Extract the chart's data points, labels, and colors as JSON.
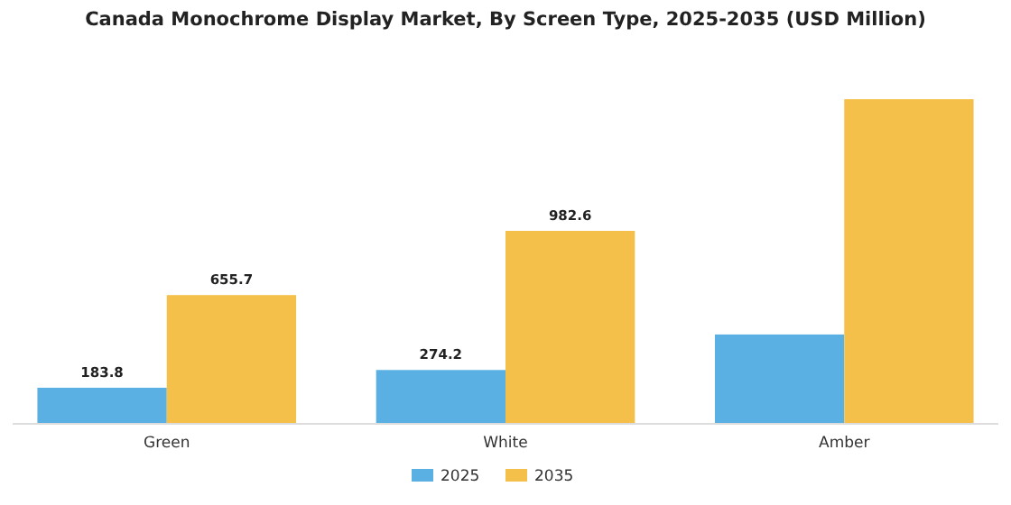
{
  "chart_data": {
    "type": "bar",
    "title": "Canada Monochrome Display Market, By Screen Type, 2025-2035 (USD Million)",
    "categories": [
      "Green",
      "White",
      "Amber"
    ],
    "series": [
      {
        "name": "2025",
        "color": "#5aafe3",
        "values": [
          183.8,
          274.2,
          455
        ],
        "value_labels": [
          "183.8",
          "274.2",
          null
        ]
      },
      {
        "name": "2035",
        "color": "#f5c04a",
        "values": [
          655.7,
          982.6,
          1653
        ],
        "value_labels": [
          "655.7",
          "982.6",
          null
        ]
      }
    ],
    "tick_labels": "x",
    "legend": "bottom"
  }
}
